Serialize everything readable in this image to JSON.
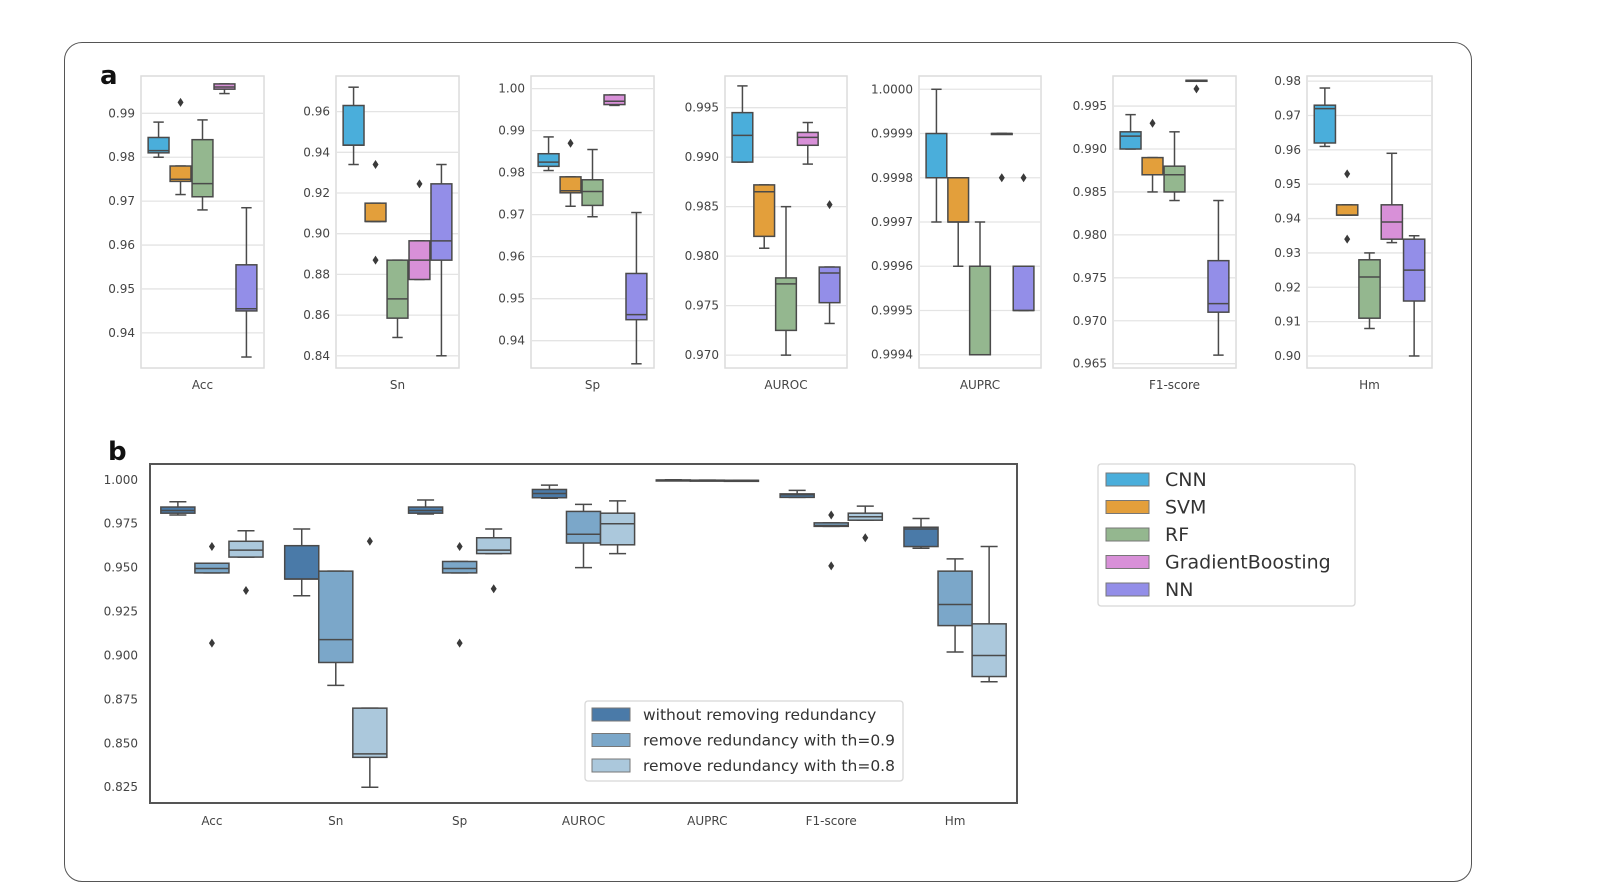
{
  "chart_data": [
    {
      "panel": "a",
      "type": "box",
      "title": "",
      "legend": {
        "placement": "right",
        "entries": [
          {
            "name": "CNN",
            "color": "#4aaedb"
          },
          {
            "name": "SVM",
            "color": "#e39f3b"
          },
          {
            "name": "RF",
            "color": "#94b78f"
          },
          {
            "name": "GradientBoosting",
            "color": "#d890d8"
          },
          {
            "name": "NN",
            "color": "#938ee8"
          }
        ]
      },
      "subplots": [
        {
          "xlabel": "Acc",
          "ylim": [
            0.932,
            0.9985
          ],
          "yticks": [
            0.94,
            0.95,
            0.96,
            0.97,
            0.98,
            0.99
          ],
          "tick_labels": [
            "0.94",
            "0.95",
            "0.96",
            "0.97",
            "0.98",
            "0.99"
          ],
          "boxes": [
            {
              "model": "CNN",
              "whislo": 0.98,
              "q1": 0.981,
              "med": 0.9815,
              "q3": 0.9845,
              "whishi": 0.988,
              "fliers": []
            },
            {
              "model": "SVM",
              "whislo": 0.9715,
              "q1": 0.9745,
              "med": 0.975,
              "q3": 0.978,
              "whishi": 0.978,
              "fliers": [
                0.9925
              ]
            },
            {
              "model": "RF",
              "whislo": 0.968,
              "q1": 0.971,
              "med": 0.974,
              "q3": 0.984,
              "whishi": 0.9885,
              "fliers": []
            },
            {
              "model": "GradientBoosting",
              "whislo": 0.9945,
              "q1": 0.9955,
              "med": 0.996,
              "q3": 0.9967,
              "whishi": 0.9967,
              "fliers": []
            },
            {
              "model": "NN",
              "whislo": 0.9345,
              "q1": 0.945,
              "med": 0.9455,
              "q3": 0.9555,
              "whishi": 0.9685,
              "fliers": []
            }
          ]
        },
        {
          "xlabel": "Sn",
          "ylim": [
            0.834,
            0.9775
          ],
          "yticks": [
            0.84,
            0.86,
            0.88,
            0.9,
            0.92,
            0.94,
            0.96
          ],
          "tick_labels": [
            "0.84",
            "0.86",
            "0.88",
            "0.90",
            "0.92",
            "0.94",
            "0.96"
          ],
          "boxes": [
            {
              "model": "CNN",
              "whislo": 0.934,
              "q1": 0.9435,
              "med": 0.9435,
              "q3": 0.963,
              "whishi": 0.972,
              "fliers": []
            },
            {
              "model": "SVM",
              "whislo": 0.906,
              "q1": 0.906,
              "med": 0.906,
              "q3": 0.915,
              "whishi": 0.915,
              "fliers": [
                0.934,
                0.887
              ]
            },
            {
              "model": "RF",
              "whislo": 0.849,
              "q1": 0.8585,
              "med": 0.868,
              "q3": 0.887,
              "whishi": 0.887,
              "fliers": []
            },
            {
              "model": "GradientBoosting",
              "whislo": 0.8775,
              "q1": 0.8775,
              "med": 0.887,
              "q3": 0.8965,
              "whishi": 0.8965,
              "fliers": [
                0.9245
              ]
            },
            {
              "model": "NN",
              "whislo": 0.84,
              "q1": 0.887,
              "med": 0.8965,
              "q3": 0.9245,
              "whishi": 0.934,
              "fliers": []
            }
          ]
        },
        {
          "xlabel": "Sp",
          "ylim": [
            0.9335,
            1.003
          ],
          "yticks": [
            0.94,
            0.95,
            0.96,
            0.97,
            0.98,
            0.99,
            1.0
          ],
          "tick_labels": [
            "0.94",
            "0.95",
            "0.96",
            "0.97",
            "0.98",
            "0.99",
            "1.00"
          ],
          "boxes": [
            {
              "model": "CNN",
              "whislo": 0.9805,
              "q1": 0.9815,
              "med": 0.9825,
              "q3": 0.9845,
              "whishi": 0.9885,
              "fliers": []
            },
            {
              "model": "SVM",
              "whislo": 0.972,
              "q1": 0.9752,
              "med": 0.9757,
              "q3": 0.979,
              "whishi": 0.979,
              "fliers": [
                0.987
              ]
            },
            {
              "model": "RF",
              "whislo": 0.9695,
              "q1": 0.9722,
              "med": 0.9755,
              "q3": 0.9783,
              "whishi": 0.9855,
              "fliers": []
            },
            {
              "model": "GradientBoosting",
              "whislo": 0.996,
              "q1": 0.9962,
              "med": 0.997,
              "q3": 0.9985,
              "whishi": 0.9985,
              "fliers": []
            },
            {
              "model": "NN",
              "whislo": 0.9345,
              "q1": 0.945,
              "med": 0.9462,
              "q3": 0.956,
              "whishi": 0.9705,
              "fliers": []
            }
          ]
        },
        {
          "xlabel": "AUROC",
          "ylim": [
            0.9687,
            0.9982
          ],
          "yticks": [
            0.97,
            0.975,
            0.98,
            0.985,
            0.99,
            0.995
          ],
          "tick_labels": [
            "0.970",
            "0.975",
            "0.980",
            "0.985",
            "0.990",
            "0.995"
          ],
          "boxes": [
            {
              "model": "CNN",
              "whislo": 0.9895,
              "q1": 0.9895,
              "med": 0.9922,
              "q3": 0.9945,
              "whishi": 0.9972,
              "fliers": []
            },
            {
              "model": "SVM",
              "whislo": 0.9808,
              "q1": 0.982,
              "med": 0.9865,
              "q3": 0.9872,
              "whishi": 0.9872,
              "fliers": []
            },
            {
              "model": "RF",
              "whislo": 0.97,
              "q1": 0.9725,
              "med": 0.9772,
              "q3": 0.9778,
              "whishi": 0.985,
              "fliers": []
            },
            {
              "model": "GradientBoosting",
              "whislo": 0.9893,
              "q1": 0.9912,
              "med": 0.992,
              "q3": 0.9925,
              "whishi": 0.9935,
              "fliers": []
            },
            {
              "model": "NN",
              "whislo": 0.9732,
              "q1": 0.9753,
              "med": 0.9783,
              "q3": 0.9789,
              "whishi": 0.9789,
              "fliers": [
                0.9852
              ]
            }
          ]
        },
        {
          "xlabel": "AUPRC",
          "ylim": [
            0.99937,
            1.00003
          ],
          "yticks": [
            0.9994,
            0.9995,
            0.9996,
            0.9997,
            0.9998,
            0.9999,
            1.0
          ],
          "tick_labels": [
            "0.9994",
            "0.9995",
            "0.9996",
            "0.9997",
            "0.9998",
            "0.9999",
            "1.0000"
          ],
          "boxes": [
            {
              "model": "CNN",
              "whislo": 0.9997,
              "q1": 0.9998,
              "med": 0.9998,
              "q3": 0.9999,
              "whishi": 1.0,
              "fliers": []
            },
            {
              "model": "SVM",
              "whislo": 0.9996,
              "q1": 0.9997,
              "med": 0.9997,
              "q3": 0.9998,
              "whishi": 0.9998,
              "fliers": []
            },
            {
              "model": "RF",
              "whislo": 0.9994,
              "q1": 0.9994,
              "med": 0.9994,
              "q3": 0.9996,
              "whishi": 0.9997,
              "fliers": []
            },
            {
              "model": "GradientBoosting",
              "whislo": 0.9999,
              "q1": 0.9999,
              "med": 0.9999,
              "q3": 0.9999,
              "whishi": 0.9999,
              "fliers": [
                0.9998
              ]
            },
            {
              "model": "NN",
              "whislo": 0.9995,
              "q1": 0.9995,
              "med": 0.9995,
              "q3": 0.9996,
              "whishi": 0.9996,
              "fliers": [
                0.9998
              ]
            }
          ]
        },
        {
          "xlabel": "F1-score",
          "ylim": [
            0.9645,
            0.9985
          ],
          "yticks": [
            0.965,
            0.97,
            0.975,
            0.98,
            0.985,
            0.99,
            0.995
          ],
          "tick_labels": [
            "0.965",
            "0.970",
            "0.975",
            "0.980",
            "0.985",
            "0.990",
            "0.995"
          ],
          "boxes": [
            {
              "model": "CNN",
              "whislo": 0.99,
              "q1": 0.99,
              "med": 0.9915,
              "q3": 0.992,
              "whishi": 0.994,
              "fliers": []
            },
            {
              "model": "SVM",
              "whislo": 0.985,
              "q1": 0.987,
              "med": 0.987,
              "q3": 0.989,
              "whishi": 0.989,
              "fliers": [
                0.993
              ]
            },
            {
              "model": "RF",
              "whislo": 0.984,
              "q1": 0.985,
              "med": 0.987,
              "q3": 0.988,
              "whishi": 0.992,
              "fliers": []
            },
            {
              "model": "GradientBoosting",
              "whislo": 0.998,
              "q1": 0.998,
              "med": 0.998,
              "q3": 0.998,
              "whishi": 0.998,
              "fliers": [
                0.997
              ]
            },
            {
              "model": "NN",
              "whislo": 0.966,
              "q1": 0.971,
              "med": 0.972,
              "q3": 0.977,
              "whishi": 0.984,
              "fliers": []
            }
          ]
        },
        {
          "xlabel": "Hm",
          "ylim": [
            0.8965,
            0.9815
          ],
          "yticks": [
            0.9,
            0.91,
            0.92,
            0.93,
            0.94,
            0.95,
            0.96,
            0.97,
            0.98
          ],
          "tick_labels": [
            "0.90",
            "0.91",
            "0.92",
            "0.93",
            "0.94",
            "0.95",
            "0.96",
            "0.97",
            "0.98"
          ],
          "boxes": [
            {
              "model": "CNN",
              "whislo": 0.961,
              "q1": 0.962,
              "med": 0.972,
              "q3": 0.973,
              "whishi": 0.978,
              "fliers": []
            },
            {
              "model": "SVM",
              "whislo": 0.941,
              "q1": 0.941,
              "med": 0.941,
              "q3": 0.944,
              "whishi": 0.944,
              "fliers": [
                0.953,
                0.934
              ]
            },
            {
              "model": "RF",
              "whislo": 0.908,
              "q1": 0.911,
              "med": 0.923,
              "q3": 0.928,
              "whishi": 0.93,
              "fliers": []
            },
            {
              "model": "GradientBoosting",
              "whislo": 0.933,
              "q1": 0.934,
              "med": 0.939,
              "q3": 0.944,
              "whishi": 0.959,
              "fliers": []
            },
            {
              "model": "NN",
              "whislo": 0.9,
              "q1": 0.916,
              "med": 0.925,
              "q3": 0.934,
              "whishi": 0.935,
              "fliers": []
            }
          ]
        }
      ]
    },
    {
      "panel": "b",
      "type": "box",
      "title": "",
      "xlabel": "",
      "ylabel": "",
      "ylim": [
        0.816,
        1.009
      ],
      "yticks": [
        0.825,
        0.85,
        0.875,
        0.9,
        0.925,
        0.95,
        0.975,
        1.0
      ],
      "tick_labels": [
        "0.825",
        "0.850",
        "0.875",
        "0.900",
        "0.925",
        "0.950",
        "0.975",
        "1.000"
      ],
      "categories": [
        "Acc",
        "Sn",
        "Sp",
        "AUROC",
        "AUPRC",
        "F1-score",
        "Hm"
      ],
      "grid": false,
      "legend": {
        "placement": "lower-center",
        "entries": [
          {
            "name": "without removing redundancy",
            "color": "#4a7aa8"
          },
          {
            "name": "remove redundancy with th=0.9",
            "color": "#7ba7c9"
          },
          {
            "name": "remove redundancy with th=0.8",
            "color": "#abc8dc"
          }
        ]
      },
      "series": [
        {
          "name": "without removing redundancy",
          "boxes": [
            {
              "whislo": 0.98,
              "q1": 0.981,
              "med": 0.9825,
              "q3": 0.9845,
              "whishi": 0.9875,
              "fliers": []
            },
            {
              "whislo": 0.934,
              "q1": 0.9435,
              "med": 0.9435,
              "q3": 0.9625,
              "whishi": 0.972,
              "fliers": []
            },
            {
              "whislo": 0.9805,
              "q1": 0.981,
              "med": 0.9825,
              "q3": 0.9845,
              "whishi": 0.9885,
              "fliers": []
            },
            {
              "whislo": 0.9895,
              "q1": 0.9898,
              "med": 0.9922,
              "q3": 0.9945,
              "whishi": 0.997,
              "fliers": []
            },
            {
              "whislo": 0.9997,
              "q1": 0.9998,
              "med": 0.9998,
              "q3": 0.9999,
              "whishi": 1.0,
              "fliers": []
            },
            {
              "whislo": 0.99,
              "q1": 0.99,
              "med": 0.9915,
              "q3": 0.992,
              "whishi": 0.994,
              "fliers": []
            },
            {
              "whislo": 0.961,
              "q1": 0.962,
              "med": 0.972,
              "q3": 0.973,
              "whishi": 0.978,
              "fliers": []
            }
          ]
        },
        {
          "name": "remove redundancy with th=0.9",
          "boxes": [
            {
              "whislo": 0.947,
              "q1": 0.947,
              "med": 0.9495,
              "q3": 0.9525,
              "whishi": 0.9525,
              "fliers": [
                0.962,
                0.907
              ]
            },
            {
              "whislo": 0.883,
              "q1": 0.896,
              "med": 0.909,
              "q3": 0.948,
              "whishi": 0.948,
              "fliers": []
            },
            {
              "whislo": 0.947,
              "q1": 0.947,
              "med": 0.9495,
              "q3": 0.9535,
              "whishi": 0.9535,
              "fliers": [
                0.962,
                0.907
              ]
            },
            {
              "whislo": 0.95,
              "q1": 0.964,
              "med": 0.969,
              "q3": 0.982,
              "whishi": 0.986,
              "fliers": []
            },
            {
              "whislo": 0.9997,
              "q1": 0.9997,
              "med": 0.9997,
              "q3": 0.9998,
              "whishi": 0.9998,
              "fliers": []
            },
            {
              "whislo": 0.9735,
              "q1": 0.9735,
              "med": 0.974,
              "q3": 0.9755,
              "whishi": 0.9755,
              "fliers": [
                0.98,
                0.951
              ]
            },
            {
              "whislo": 0.902,
              "q1": 0.917,
              "med": 0.929,
              "q3": 0.948,
              "whishi": 0.955,
              "fliers": []
            }
          ]
        },
        {
          "name": "remove redundancy with th=0.8",
          "boxes": [
            {
              "whislo": 0.956,
              "q1": 0.956,
              "med": 0.96,
              "q3": 0.965,
              "whishi": 0.971,
              "fliers": [
                0.937
              ]
            },
            {
              "whislo": 0.825,
              "q1": 0.842,
              "med": 0.844,
              "q3": 0.87,
              "whishi": 0.87,
              "fliers": [
                0.965
              ]
            },
            {
              "whislo": 0.958,
              "q1": 0.958,
              "med": 0.96,
              "q3": 0.967,
              "whishi": 0.972,
              "fliers": [
                0.938
              ]
            },
            {
              "whislo": 0.958,
              "q1": 0.963,
              "med": 0.975,
              "q3": 0.981,
              "whishi": 0.988,
              "fliers": []
            },
            {
              "whislo": 0.9996,
              "q1": 0.9996,
              "med": 0.9997,
              "q3": 0.9997,
              "whishi": 0.9997,
              "fliers": []
            },
            {
              "whislo": 0.977,
              "q1": 0.977,
              "med": 0.979,
              "q3": 0.981,
              "whishi": 0.985,
              "fliers": [
                0.967
              ]
            },
            {
              "whislo": 0.885,
              "q1": 0.888,
              "med": 0.9,
              "q3": 0.918,
              "whishi": 0.962,
              "fliers": []
            }
          ]
        }
      ]
    }
  ]
}
